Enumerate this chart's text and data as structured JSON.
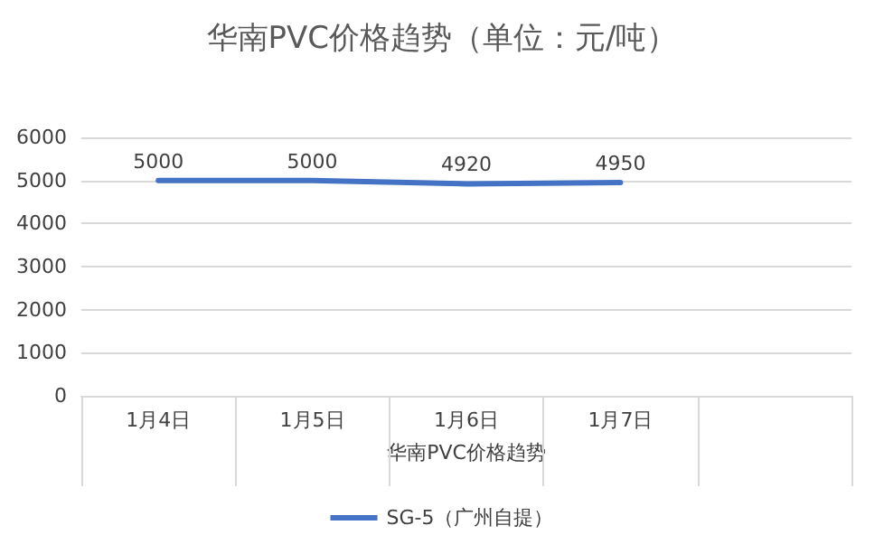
{
  "chart_data": {
    "type": "line",
    "title": "华南PVC价格趋势（单位：元/吨）",
    "xlabel": "华南PVC价格趋势",
    "categories": [
      "1月4日",
      "1月5日",
      "1月6日",
      "1月7日",
      null
    ],
    "series": [
      {
        "name": "SG-5（广州自提）",
        "color": "#4472c4",
        "values": [
          5000,
          5000,
          4920,
          4950,
          null
        ]
      }
    ],
    "ylim": [
      0,
      6000
    ],
    "yticks": [
      0,
      1000,
      2000,
      3000,
      4000,
      5000,
      6000
    ],
    "grid": "y",
    "legend": "bottom",
    "data_labels": true,
    "marker": "none"
  }
}
